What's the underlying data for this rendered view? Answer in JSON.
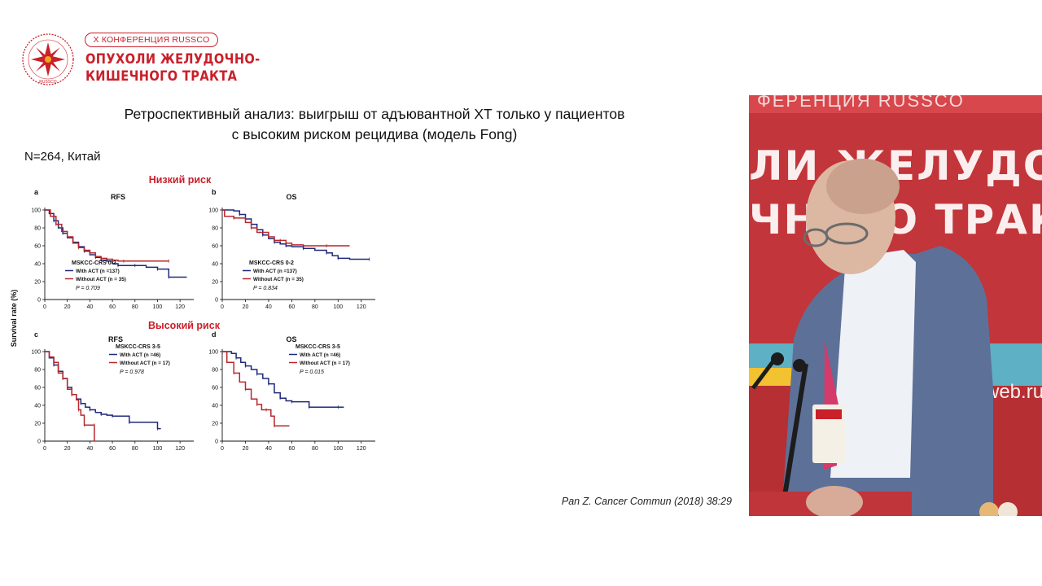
{
  "header": {
    "conference_badge": "X КОНФЕРЕНЦИЯ RUSSCO",
    "conference_title_line1": "ОПУХОЛИ ЖЕЛУДОЧНО-",
    "conference_title_line2": "КИШЕЧНОГО ТРАКТА",
    "logo_text": "RUSSCO"
  },
  "slide": {
    "title_line1": "Ретроспективный анализ: выигрыш от адъювантной ХТ только у пациентов",
    "title_line2": "с высоким риском рецидива (модель Fong)",
    "subtitle": "N=264, Китай",
    "citation": "Pan Z. Cancer Commun (2018) 38:29",
    "y_axis_label": "Survival rate (%)",
    "low_risk_label": "Низкий риск",
    "high_risk_label": "Высокий риск"
  },
  "video": {
    "banner_top": "ФЕРЕНЦИЯ RUSSCO",
    "banner_line1": "ЛИ ЖЕЛУДОЧНО-",
    "banner_line2": "ЧНОГО ТРАКТА",
    "banner_web": "web.ru"
  },
  "colors": {
    "accent": "#c9202a",
    "with_act": "#1f2a7a",
    "without_act": "#b8272b"
  },
  "chart_data": [
    {
      "type": "line",
      "panel": "a",
      "title": "RFS",
      "group": "MSKCC-CRS 0-2",
      "xlim": [
        0,
        130
      ],
      "ylim": [
        0,
        100
      ],
      "x_ticks": [
        0,
        20,
        40,
        60,
        80,
        100,
        120
      ],
      "y_ticks": [
        0,
        20,
        40,
        60,
        80,
        100
      ],
      "p_value": "P = 0.709",
      "series": [
        {
          "name": "With ACT (n =137)",
          "color": "#1f2a7a",
          "points": [
            [
              0,
              100
            ],
            [
              4,
              96
            ],
            [
              8,
              88
            ],
            [
              12,
              80
            ],
            [
              16,
              74
            ],
            [
              20,
              69
            ],
            [
              25,
              64
            ],
            [
              30,
              59
            ],
            [
              35,
              54
            ],
            [
              40,
              50
            ],
            [
              45,
              47
            ],
            [
              50,
              44
            ],
            [
              55,
              43
            ],
            [
              60,
              40
            ],
            [
              65,
              38
            ],
            [
              70,
              38
            ],
            [
              80,
              38
            ],
            [
              90,
              36
            ],
            [
              100,
              34
            ],
            [
              105,
              34
            ],
            [
              110,
              25
            ],
            [
              126,
              25
            ]
          ]
        },
        {
          "name": "Without ACT (n = 35)",
          "color": "#b8272b",
          "points": [
            [
              0,
              100
            ],
            [
              5,
              93
            ],
            [
              10,
              84
            ],
            [
              15,
              76
            ],
            [
              20,
              70
            ],
            [
              25,
              63
            ],
            [
              30,
              58
            ],
            [
              35,
              55
            ],
            [
              40,
              52
            ],
            [
              45,
              48
            ],
            [
              50,
              46
            ],
            [
              55,
              45
            ],
            [
              60,
              44
            ],
            [
              65,
              43
            ],
            [
              70,
              43
            ],
            [
              90,
              43
            ],
            [
              110,
              43
            ]
          ]
        }
      ]
    },
    {
      "type": "line",
      "panel": "b",
      "title": "OS",
      "group": "MSKCC-CRS 0-2",
      "xlim": [
        0,
        130
      ],
      "ylim": [
        0,
        100
      ],
      "x_ticks": [
        0,
        20,
        40,
        60,
        80,
        100,
        120
      ],
      "y_ticks": [
        0,
        20,
        40,
        60,
        80,
        100
      ],
      "p_value": "P = 0.834",
      "series": [
        {
          "name": "With ACT (n =137)",
          "color": "#1f2a7a",
          "points": [
            [
              0,
              100
            ],
            [
              10,
              99
            ],
            [
              15,
              95
            ],
            [
              20,
              90
            ],
            [
              25,
              84
            ],
            [
              30,
              78
            ],
            [
              35,
              72
            ],
            [
              40,
              68
            ],
            [
              45,
              64
            ],
            [
              50,
              62
            ],
            [
              55,
              60
            ],
            [
              60,
              59
            ],
            [
              70,
              57
            ],
            [
              80,
              55
            ],
            [
              90,
              52
            ],
            [
              95,
              49
            ],
            [
              100,
              46
            ],
            [
              110,
              45
            ],
            [
              127,
              45
            ]
          ]
        },
        {
          "name": "Without ACT (n = 35)",
          "color": "#b8272b",
          "points": [
            [
              0,
              100
            ],
            [
              2,
              93
            ],
            [
              10,
              91
            ],
            [
              20,
              86
            ],
            [
              25,
              80
            ],
            [
              30,
              75
            ],
            [
              40,
              70
            ],
            [
              45,
              66
            ],
            [
              50,
              66
            ],
            [
              55,
              63
            ],
            [
              60,
              61
            ],
            [
              70,
              60
            ],
            [
              90,
              60
            ],
            [
              110,
              60
            ]
          ]
        }
      ]
    },
    {
      "type": "line",
      "panel": "c",
      "title": "RFS",
      "group": "MSKCC-CRS 3-5",
      "xlim": [
        0,
        130
      ],
      "ylim": [
        0,
        100
      ],
      "x_ticks": [
        0,
        20,
        40,
        60,
        80,
        100,
        120
      ],
      "y_ticks": [
        0,
        20,
        40,
        60,
        80,
        100
      ],
      "p_value": "P = 0.978",
      "series": [
        {
          "name": "With ACT (n =46)",
          "color": "#1f2a7a",
          "points": [
            [
              0,
              100
            ],
            [
              4,
              93
            ],
            [
              8,
              85
            ],
            [
              12,
              78
            ],
            [
              16,
              70
            ],
            [
              20,
              60
            ],
            [
              24,
              52
            ],
            [
              28,
              47
            ],
            [
              32,
              42
            ],
            [
              36,
              38
            ],
            [
              40,
              35
            ],
            [
              45,
              32
            ],
            [
              50,
              30
            ],
            [
              55,
              29
            ],
            [
              60,
              28
            ],
            [
              70,
              28
            ],
            [
              75,
              21
            ],
            [
              90,
              21
            ],
            [
              100,
              14
            ],
            [
              103,
              14
            ]
          ]
        },
        {
          "name": "Without ACT (n = 17)",
          "color": "#b8272b",
          "points": [
            [
              0,
              100
            ],
            [
              4,
              94
            ],
            [
              8,
              88
            ],
            [
              12,
              76
            ],
            [
              16,
              70
            ],
            [
              20,
              58
            ],
            [
              24,
              52
            ],
            [
              28,
              46
            ],
            [
              30,
              35
            ],
            [
              32,
              29
            ],
            [
              35,
              18
            ],
            [
              40,
              18
            ],
            [
              44,
              18
            ],
            [
              44,
              0
            ]
          ]
        }
      ]
    },
    {
      "type": "line",
      "panel": "d",
      "title": "OS",
      "group": "MSKCC-CRS 3-5",
      "xlim": [
        0,
        130
      ],
      "ylim": [
        0,
        100
      ],
      "x_ticks": [
        0,
        20,
        40,
        60,
        80,
        100,
        120
      ],
      "y_ticks": [
        0,
        20,
        40,
        60,
        80,
        100
      ],
      "p_value": "P = 0.015",
      "series": [
        {
          "name": "With ACT (n =46)",
          "color": "#1f2a7a",
          "points": [
            [
              0,
              100
            ],
            [
              8,
              98
            ],
            [
              12,
              93
            ],
            [
              16,
              88
            ],
            [
              20,
              84
            ],
            [
              25,
              80
            ],
            [
              30,
              75
            ],
            [
              35,
              70
            ],
            [
              40,
              64
            ],
            [
              45,
              54
            ],
            [
              50,
              48
            ],
            [
              55,
              45
            ],
            [
              60,
              44
            ],
            [
              70,
              44
            ],
            [
              75,
              38
            ],
            [
              90,
              38
            ],
            [
              100,
              38
            ],
            [
              105,
              38
            ]
          ]
        },
        {
          "name": "Without ACT (n = 17)",
          "color": "#b8272b",
          "points": [
            [
              0,
              100
            ],
            [
              4,
              88
            ],
            [
              10,
              76
            ],
            [
              15,
              66
            ],
            [
              20,
              58
            ],
            [
              25,
              47
            ],
            [
              30,
              41
            ],
            [
              34,
              35
            ],
            [
              38,
              35
            ],
            [
              42,
              28
            ],
            [
              45,
              17
            ],
            [
              58,
              17
            ]
          ]
        }
      ]
    }
  ]
}
